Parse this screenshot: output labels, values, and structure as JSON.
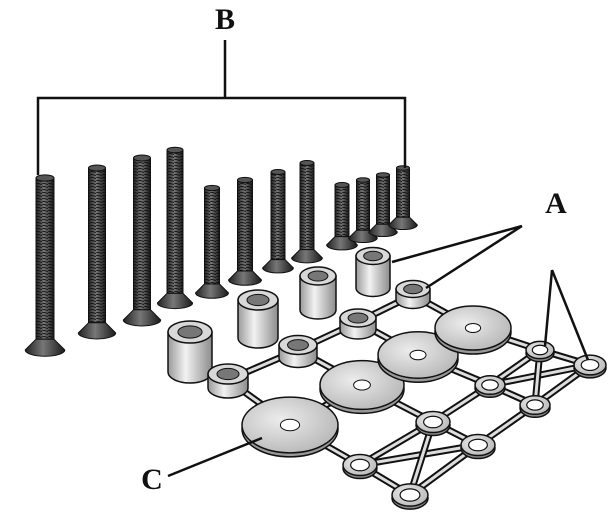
{
  "callouts": [
    {
      "label": "B"
    },
    {
      "label": "A"
    },
    {
      "label": "C"
    }
  ]
}
